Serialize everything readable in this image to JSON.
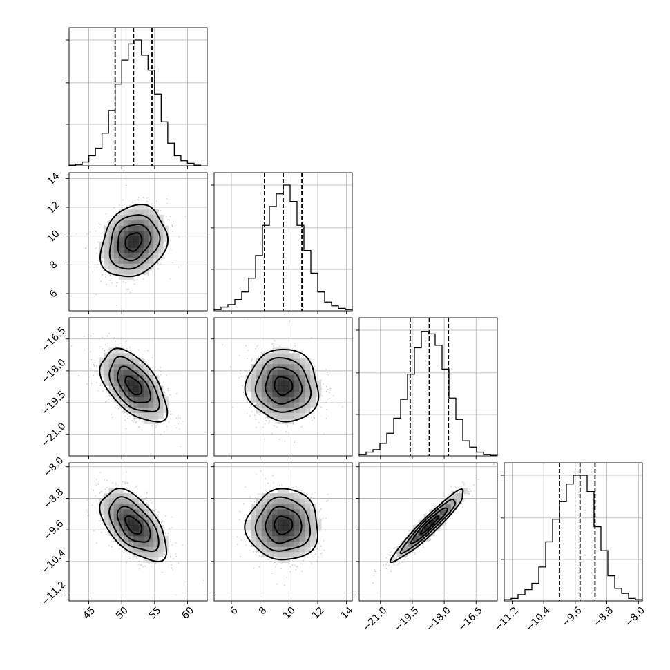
{
  "chart_data": {
    "type": "corner",
    "title": "",
    "grid": true,
    "parameters": [
      {
        "label": "",
        "range": [
          42,
          63
        ],
        "ticks": [
          45,
          50,
          55,
          60
        ],
        "tick_labels": [
          "45",
          "50",
          "55",
          "60"
        ],
        "median": 51.8,
        "quantiles": [
          49.0,
          51.8,
          54.6
        ],
        "hist": {
          "bin_edges": [
            42.0,
            43.0,
            44.0,
            45.0,
            46.0,
            47.0,
            48.0,
            49.0,
            50.0,
            51.0,
            52.0,
            53.0,
            54.0,
            55.0,
            56.0,
            57.0,
            58.0,
            59.0,
            60.0,
            61.0,
            62.0
          ],
          "values": [
            0.005,
            0.01,
            0.03,
            0.08,
            0.14,
            0.26,
            0.44,
            0.65,
            0.84,
            0.97,
            1.0,
            0.88,
            0.76,
            0.57,
            0.35,
            0.18,
            0.08,
            0.04,
            0.02,
            0.005
          ]
        }
      },
      {
        "label": "",
        "range": [
          4.8,
          14.4
        ],
        "ticks": [
          6,
          8,
          10,
          12,
          14
        ],
        "tick_labels": [
          "6",
          "8",
          "10",
          "12",
          "14"
        ],
        "median": 9.6,
        "quantiles": [
          8.3,
          9.6,
          10.9
        ],
        "hist": {
          "bin_edges": [
            4.8,
            5.28,
            5.76,
            6.24,
            6.72,
            7.2,
            7.68,
            8.16,
            8.64,
            9.12,
            9.6,
            10.08,
            10.56,
            11.04,
            11.52,
            12.0,
            12.48,
            12.96,
            13.44,
            13.92,
            14.4
          ],
          "values": [
            0.01,
            0.03,
            0.05,
            0.09,
            0.15,
            0.26,
            0.44,
            0.68,
            0.83,
            0.93,
            1.0,
            0.87,
            0.68,
            0.48,
            0.3,
            0.15,
            0.07,
            0.04,
            0.02,
            0.01
          ]
        }
      },
      {
        "label": "",
        "range": [
          -22.0,
          -15.5
        ],
        "ticks": [
          -21.0,
          -19.5,
          -18.0,
          -16.5
        ],
        "tick_labels": [
          "−21.0",
          "−19.5",
          "−18.0",
          "−16.5"
        ],
        "median": -18.7,
        "quantiles": [
          -19.6,
          -18.7,
          -17.8
        ],
        "hist": {
          "bin_edges": [
            -22.0,
            -21.675,
            -21.35,
            -21.025,
            -20.7,
            -20.375,
            -20.05,
            -19.725,
            -19.4,
            -19.075,
            -18.75,
            -18.425,
            -18.1,
            -17.775,
            -17.45,
            -17.125,
            -16.8,
            -16.475,
            -16.15,
            -15.825,
            -15.5
          ],
          "values": [
            0.01,
            0.03,
            0.05,
            0.1,
            0.18,
            0.3,
            0.45,
            0.65,
            0.86,
            0.99,
            0.97,
            0.88,
            0.69,
            0.46,
            0.29,
            0.12,
            0.07,
            0.03,
            0.01,
            0.005
          ]
        }
      },
      {
        "label": "",
        "range": [
          -11.4,
          -7.9
        ],
        "ticks": [
          -11.2,
          -10.4,
          -9.6,
          -8.8,
          -8.0
        ],
        "tick_labels": [
          "−11.2",
          "−10.4",
          "−9.6",
          "−8.8",
          "−8.0"
        ],
        "median": -9.48,
        "quantiles": [
          -10.0,
          -9.48,
          -9.1
        ],
        "hist": {
          "bin_edges": [
            -11.4,
            -11.225,
            -11.05,
            -10.875,
            -10.7,
            -10.525,
            -10.35,
            -10.175,
            -10.0,
            -9.825,
            -9.65,
            -9.475,
            -9.3,
            -9.125,
            -8.95,
            -8.775,
            -8.6,
            -8.425,
            -8.25,
            -8.075,
            -7.9
          ],
          "values": [
            0.01,
            0.02,
            0.05,
            0.09,
            0.14,
            0.27,
            0.47,
            0.65,
            0.79,
            0.93,
            1.0,
            1.0,
            0.87,
            0.59,
            0.4,
            0.2,
            0.1,
            0.06,
            0.02,
            0.01
          ]
        }
      }
    ],
    "pairs": [
      {
        "x": 0,
        "y": 1,
        "center": [
          51.8,
          9.6
        ],
        "sigma": [
          2.5,
          1.25
        ],
        "rho": 0.2
      },
      {
        "x": 0,
        "y": 2,
        "center": [
          51.8,
          -18.7
        ],
        "sigma": [
          2.5,
          0.85
        ],
        "rho": -0.55
      },
      {
        "x": 1,
        "y": 2,
        "center": [
          9.6,
          -18.7
        ],
        "sigma": [
          1.25,
          0.85
        ],
        "rho": -0.05
      },
      {
        "x": 0,
        "y": 3,
        "center": [
          51.8,
          -9.48
        ],
        "sigma": [
          2.5,
          0.45
        ],
        "rho": -0.55
      },
      {
        "x": 1,
        "y": 3,
        "center": [
          9.6,
          -9.48
        ],
        "sigma": [
          1.25,
          0.45
        ],
        "rho": 0.0
      },
      {
        "x": 2,
        "y": 3,
        "center": [
          -18.7,
          -9.48
        ],
        "sigma": [
          0.85,
          0.45
        ],
        "rho": 0.95
      }
    ],
    "contour_levels_sigma": [
      0.5,
      1.0,
      1.5,
      2.0
    ]
  }
}
